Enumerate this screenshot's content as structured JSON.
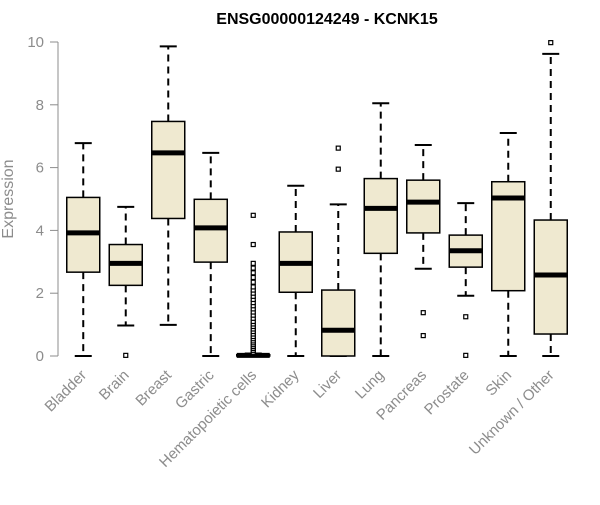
{
  "chart_data": {
    "type": "box",
    "title": "ENSG00000124249 - KCNK15",
    "ylabel": "Expression",
    "xlabel": "",
    "ylim": [
      0,
      10
    ],
    "yticks": [
      0,
      2,
      4,
      6,
      8,
      10
    ],
    "grid": false,
    "box_fill": "#efe9d0",
    "box_stroke": "#000000",
    "axis_color": "#8c8c8c",
    "categories": [
      "Bladder",
      "Brain",
      "Breast",
      "Gastric",
      "Hematopoietic cells",
      "Kidney",
      "Liver",
      "Lung",
      "Pancreas",
      "Prostate",
      "Skin",
      "Unknown / Other"
    ],
    "boxes": [
      {
        "category": "Bladder",
        "whisker_low": 0,
        "q1": 2.67,
        "median": 3.92,
        "q3": 5.05,
        "whisker_high": 6.78,
        "outliers": []
      },
      {
        "category": "Brain",
        "whisker_low": 0.97,
        "q1": 2.25,
        "median": 2.95,
        "q3": 3.55,
        "whisker_high": 4.75,
        "outliers": [
          0.02
        ]
      },
      {
        "category": "Breast",
        "whisker_low": 0.99,
        "q1": 4.38,
        "median": 6.47,
        "q3": 7.47,
        "whisker_high": 9.86,
        "outliers": []
      },
      {
        "category": "Gastric",
        "whisker_low": 0,
        "q1": 2.99,
        "median": 4.08,
        "q3": 4.99,
        "whisker_high": 6.47,
        "outliers": []
      },
      {
        "category": "Hematopoietic cells",
        "whisker_low": 0,
        "q1": 0,
        "median": 0.02,
        "q3": 0.04,
        "whisker_high": 0.08,
        "outliers": [
          0.12,
          0.18,
          0.24,
          0.3,
          0.36,
          0.42,
          0.48,
          0.55,
          0.62,
          0.7,
          0.78,
          0.86,
          0.94,
          1.02,
          1.1,
          1.2,
          1.3,
          1.4,
          1.5,
          1.6,
          1.7,
          1.8,
          1.9,
          2.0,
          2.1,
          2.2,
          2.35,
          2.5,
          2.65,
          2.8,
          2.95,
          3.55,
          4.48
        ]
      },
      {
        "category": "Kidney",
        "whisker_low": 0,
        "q1": 2.03,
        "median": 2.95,
        "q3": 3.95,
        "whisker_high": 5.42,
        "outliers": []
      },
      {
        "category": "Liver",
        "whisker_low": 0,
        "q1": 0,
        "median": 0.82,
        "q3": 2.1,
        "whisker_high": 4.83,
        "outliers": [
          5.95,
          6.62
        ]
      },
      {
        "category": "Lung",
        "whisker_low": 0,
        "q1": 3.27,
        "median": 4.7,
        "q3": 5.65,
        "whisker_high": 8.05,
        "outliers": []
      },
      {
        "category": "Pancreas",
        "whisker_low": 2.78,
        "q1": 3.92,
        "median": 4.9,
        "q3": 5.6,
        "whisker_high": 6.72,
        "outliers": [
          0.65,
          1.38
        ]
      },
      {
        "category": "Prostate",
        "whisker_low": 1.92,
        "q1": 2.83,
        "median": 3.35,
        "q3": 3.85,
        "whisker_high": 4.87,
        "outliers": [
          0.02,
          1.25
        ]
      },
      {
        "category": "Skin",
        "whisker_low": 0,
        "q1": 2.08,
        "median": 5.03,
        "q3": 5.55,
        "whisker_high": 7.1,
        "outliers": []
      },
      {
        "category": "Unknown / Other",
        "whisker_low": 0,
        "q1": 0.7,
        "median": 2.58,
        "q3": 4.33,
        "whisker_high": 9.62,
        "outliers": [
          9.98
        ]
      }
    ]
  }
}
